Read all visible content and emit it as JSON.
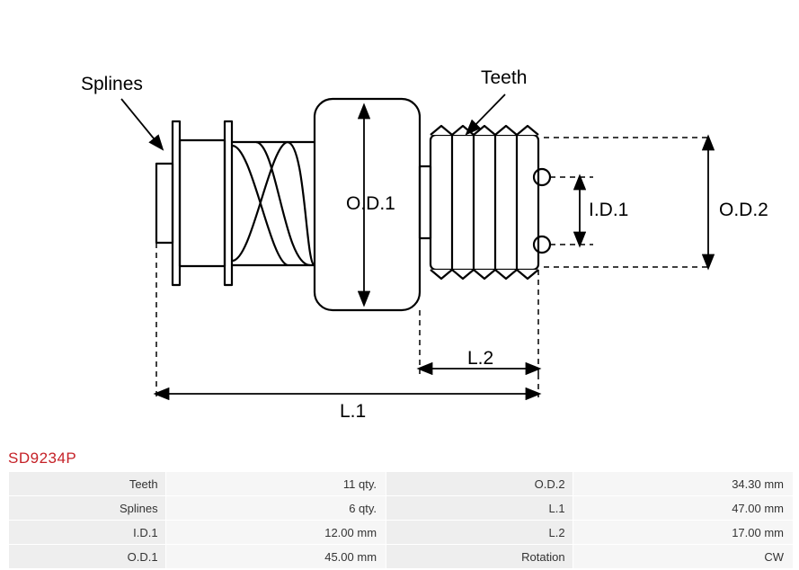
{
  "part_code": "SD9234P",
  "diagram": {
    "labels": {
      "splines": "Splines",
      "teeth": "Teeth",
      "od1": "O.D.1",
      "od2": "O.D.2",
      "id1": "I.D.1",
      "l1": "L.1",
      "l2": "L.2"
    },
    "label_fontsize": 21,
    "dim_fontsize": 21,
    "stroke_color": "#000000",
    "stroke_width": 2.2,
    "dash_pattern": "6,5",
    "background": "#ffffff"
  },
  "specs": {
    "rows": [
      {
        "label": "Teeth",
        "value": "11 qty.",
        "label2": "O.D.2",
        "value2": "34.30 mm"
      },
      {
        "label": "Splines",
        "value": "6 qty.",
        "label2": "L.1",
        "value2": "47.00 mm"
      },
      {
        "label": "I.D.1",
        "value": "12.00 mm",
        "label2": "L.2",
        "value2": "17.00 mm"
      },
      {
        "label": "O.D.1",
        "value": "45.00 mm",
        "label2": "Rotation",
        "value2": "CW"
      }
    ],
    "label_bg": "#eeeeee",
    "value_bg": "#f6f6f6",
    "text_color": "#333333",
    "fontsize": 13
  },
  "colors": {
    "part_code": "#c52127",
    "stroke": "#000000",
    "page_bg": "#ffffff"
  }
}
